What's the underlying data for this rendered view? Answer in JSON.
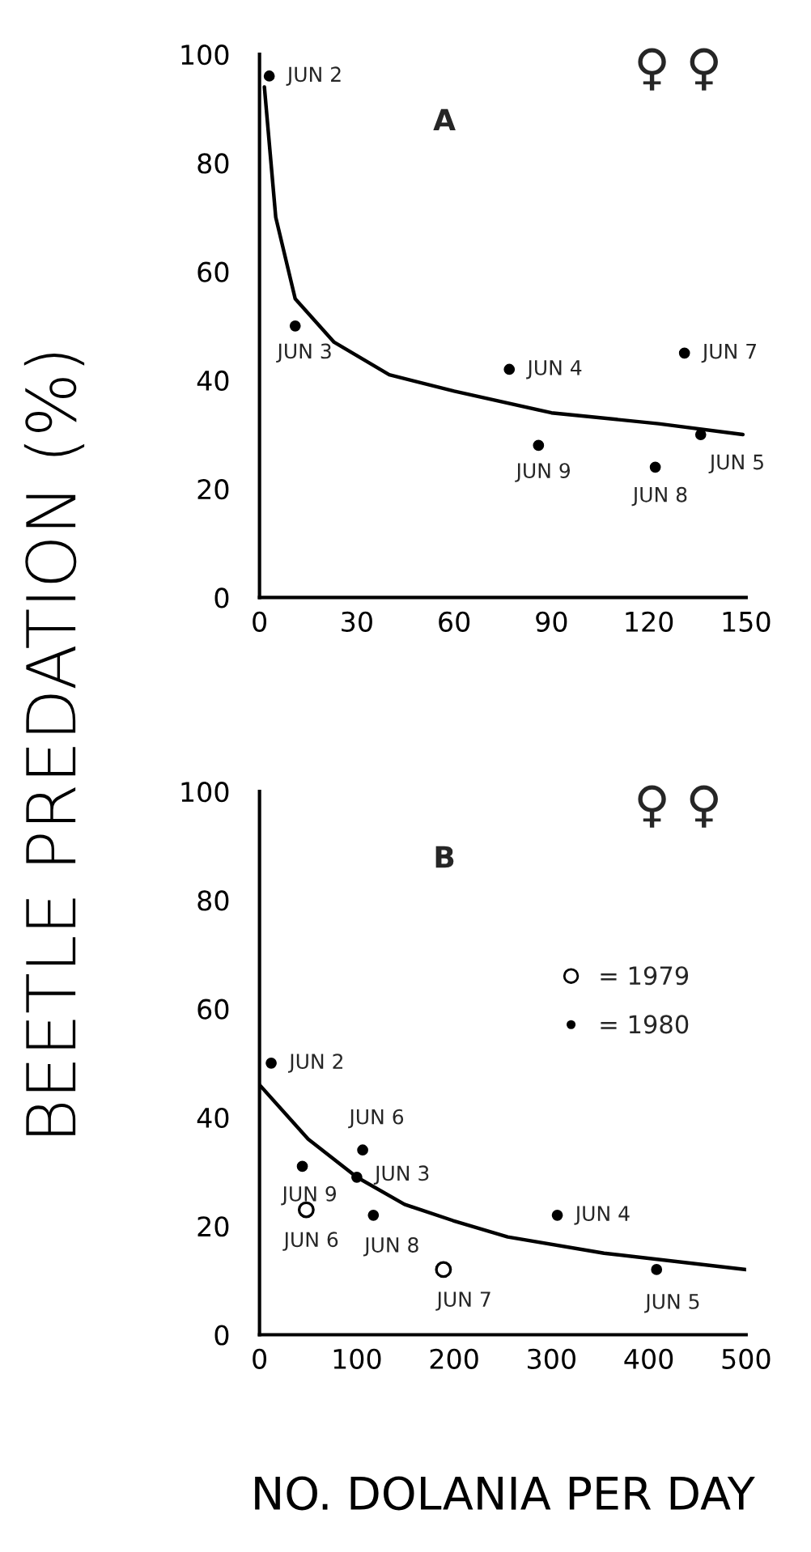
{
  "chart_data": [
    {
      "type": "scatter",
      "ylabel": "BEETLE PREDATION (%)",
      "xlim": [
        0,
        150
      ],
      "ylim": [
        0,
        100
      ],
      "xticks": [
        0,
        30,
        60,
        90,
        120,
        150
      ],
      "yticks": [
        0,
        20,
        40,
        60,
        80,
        100
      ],
      "grid": false,
      "legend": false,
      "series": [
        {
          "color": "#000000",
          "marker": "circle",
          "x": [
            3,
            11,
            77,
            86,
            122,
            136,
            131
          ],
          "values": [
            96,
            50,
            42,
            28,
            24,
            30,
            45
          ]
        },
        {
          "type": "line",
          "color": "#000000",
          "marker": "none",
          "line_style": "solid",
          "x": [
            1.5,
            5,
            11,
            23,
            40,
            60,
            90,
            123,
            149
          ],
          "values": [
            94,
            70,
            55,
            47,
            41,
            38,
            34,
            32,
            30
          ]
        }
      ],
      "annotations": [
        "A",
        "♀ ♀",
        {
          "text": "JUN 2",
          "x": 3,
          "y": 96
        },
        {
          "text": "JUN 3",
          "x": 11,
          "y": 50
        },
        {
          "text": "JUN 4",
          "x": 77,
          "y": 42
        },
        {
          "text": "JUN 9",
          "x": 86,
          "y": 28
        },
        {
          "text": "JUN 8",
          "x": 122,
          "y": 24
        },
        {
          "text": "JUN 5",
          "x": 136,
          "y": 30
        },
        {
          "text": "JUN 7",
          "x": 131,
          "y": 45
        }
      ]
    },
    {
      "type": "scatter",
      "xlabel": "NO. DOLANIA PER DAY",
      "xlim": [
        0,
        500
      ],
      "ylim": [
        0,
        100
      ],
      "xticks": [
        0,
        100,
        200,
        300,
        400,
        500
      ],
      "yticks": [
        0,
        20,
        40,
        60,
        80,
        100
      ],
      "grid": false,
      "legend": "top right",
      "series": [
        {
          "name": "= 1979",
          "color": "#000000",
          "marker": "open circle",
          "x": [
            48,
            189
          ],
          "values": [
            23,
            12
          ]
        },
        {
          "name": "= 1980",
          "color": "#000000",
          "marker": "circle",
          "x": [
            12,
            106,
            44,
            100,
            117,
            306,
            408
          ],
          "values": [
            50,
            34,
            31,
            29,
            22,
            22,
            12
          ]
        },
        {
          "type": "line",
          "color": "#000000",
          "marker": "none",
          "line_style": "solid",
          "x": [
            0,
            50,
            100,
            149,
            199,
            255,
            354,
            500
          ],
          "values": [
            46,
            36,
            29,
            24,
            21,
            18,
            15,
            12
          ]
        }
      ],
      "annotations": [
        "B",
        "♀ ♀",
        {
          "text": "JUN 6",
          "x": 48,
          "y": 23
        },
        {
          "text": "JUN 7",
          "x": 189,
          "y": 12
        },
        {
          "text": "JUN 2",
          "x": 12,
          "y": 50
        },
        {
          "text": "JUN 6",
          "x": 106,
          "y": 34
        },
        {
          "text": "JUN 9",
          "x": 44,
          "y": 31
        },
        {
          "text": "JUN 3",
          "x": 100,
          "y": 29
        },
        {
          "text": "JUN 8",
          "x": 117,
          "y": 22
        },
        {
          "text": "JUN 4",
          "x": 306,
          "y": 22
        },
        {
          "text": "JUN 5",
          "x": 408,
          "y": 12
        }
      ]
    }
  ]
}
